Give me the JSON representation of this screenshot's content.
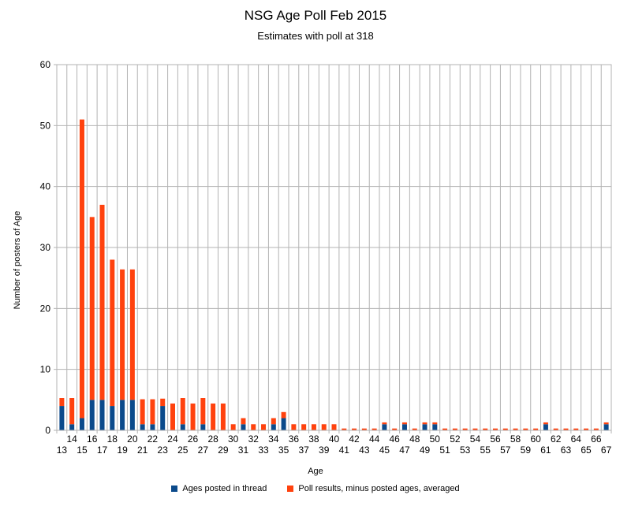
{
  "chart_data": {
    "type": "bar",
    "stacked": true,
    "title": "NSG Age Poll Feb 2015",
    "subtitle": "Estimates with poll at 318",
    "xlabel": "Age",
    "ylabel": "Number of posters of Age",
    "ylim": [
      0,
      60
    ],
    "yticks": [
      0,
      10,
      20,
      30,
      40,
      50,
      60
    ],
    "grid": true,
    "legend_position": "bottom",
    "categories": [
      13,
      14,
      15,
      16,
      17,
      18,
      19,
      20,
      21,
      22,
      23,
      24,
      25,
      26,
      27,
      28,
      29,
      30,
      31,
      32,
      33,
      34,
      35,
      36,
      37,
      38,
      39,
      40,
      41,
      42,
      43,
      44,
      45,
      46,
      47,
      48,
      49,
      50,
      51,
      52,
      53,
      54,
      55,
      56,
      57,
      58,
      59,
      60,
      61,
      62,
      63,
      64,
      65,
      66,
      67
    ],
    "series": [
      {
        "name": "Ages posted in thread",
        "color": "#0b4a8b",
        "values": [
          4,
          1,
          2,
          5,
          5,
          4,
          5,
          5,
          1,
          1,
          4,
          0,
          1,
          0,
          1,
          0,
          0,
          0,
          1,
          0,
          0,
          1,
          2,
          0,
          0,
          0,
          0,
          0,
          0,
          0,
          0,
          0,
          1,
          0,
          1,
          0,
          1,
          1,
          0,
          0,
          0,
          0,
          0,
          0,
          0,
          0,
          0,
          0,
          1,
          0,
          0,
          0,
          0,
          0,
          1
        ]
      },
      {
        "name": "Poll results, minus posted ages, averaged",
        "color": "#ff420e",
        "values": [
          1.3,
          4.3,
          49.0,
          30.0,
          32.0,
          24.0,
          21.4,
          21.4,
          4.1,
          4.1,
          1.2,
          4.4,
          4.3,
          4.4,
          4.3,
          4.4,
          4.4,
          1.0,
          1.0,
          1.0,
          1.0,
          1.0,
          1.0,
          1.0,
          1.0,
          1.0,
          1.0,
          1.0,
          0.3,
          0.3,
          0.3,
          0.3,
          0.3,
          0.3,
          0.3,
          0.3,
          0.3,
          0.3,
          0.3,
          0.3,
          0.3,
          0.3,
          0.3,
          0.3,
          0.3,
          0.3,
          0.3,
          0.3,
          0.3,
          0.3,
          0.3,
          0.3,
          0.3,
          0.3,
          0.3
        ]
      }
    ]
  }
}
